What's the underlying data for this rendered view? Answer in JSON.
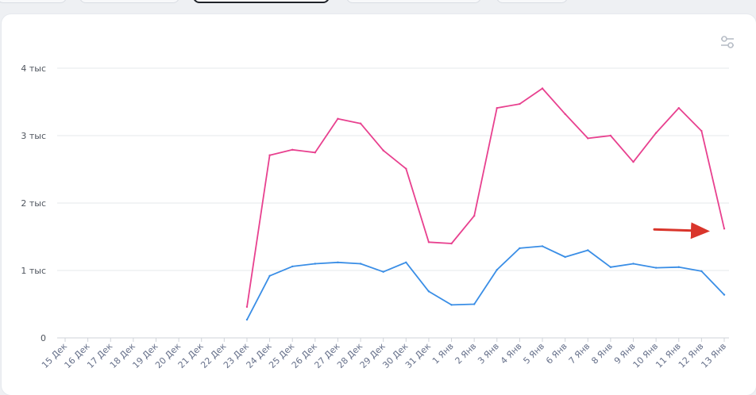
{
  "chart_data": {
    "type": "line",
    "title": "",
    "xlabel": "",
    "ylabel": "",
    "ylim": [
      0,
      4000
    ],
    "yticks": [
      {
        "value": 0,
        "label": "0"
      },
      {
        "value": 1000,
        "label": "1 тыс"
      },
      {
        "value": 2000,
        "label": "2 тыс"
      },
      {
        "value": 3000,
        "label": "3 тыс"
      },
      {
        "value": 4000,
        "label": "4 тыс"
      }
    ],
    "categories": [
      "15 Дек",
      "16 Дек",
      "17 Дек",
      "18 Дек",
      "19 Дек",
      "20 Дек",
      "21 Дек",
      "22 Дек",
      "23 Дек",
      "24 Дек",
      "25 Дек",
      "26 Дек",
      "27 Дек",
      "28 Дек",
      "29 Дек",
      "30 Дек",
      "31 Дек",
      "1 Янв",
      "2 Янв",
      "3 Янв",
      "4 Янв",
      "5 Янв",
      "6 Янв",
      "7 Янв",
      "8 Янв",
      "9 Янв",
      "10 Янв",
      "11 Янв",
      "12 Янв",
      "13 Янв"
    ],
    "grid": true,
    "legend": "none",
    "series": [
      {
        "color": "#e8418f",
        "values": [
          null,
          null,
          null,
          null,
          null,
          null,
          null,
          null,
          460,
          2710,
          2790,
          2750,
          3250,
          3180,
          2780,
          2510,
          1420,
          1400,
          1810,
          3410,
          3470,
          3700,
          3320,
          2960,
          3000,
          2610,
          3040,
          3410,
          3070,
          1620
        ]
      },
      {
        "color": "#3a8ee6",
        "values": [
          null,
          null,
          null,
          null,
          null,
          null,
          null,
          null,
          270,
          920,
          1060,
          1100,
          1120,
          1100,
          980,
          1120,
          690,
          490,
          500,
          1010,
          1330,
          1360,
          1200,
          1300,
          1050,
          1100,
          1040,
          1050,
          990,
          640
        ]
      }
    ],
    "annotation": {
      "type": "arrow",
      "color": "#d9352b",
      "target_category": "13 Янв"
    }
  },
  "toolbar": {
    "settings_icon": "sliders-icon"
  }
}
